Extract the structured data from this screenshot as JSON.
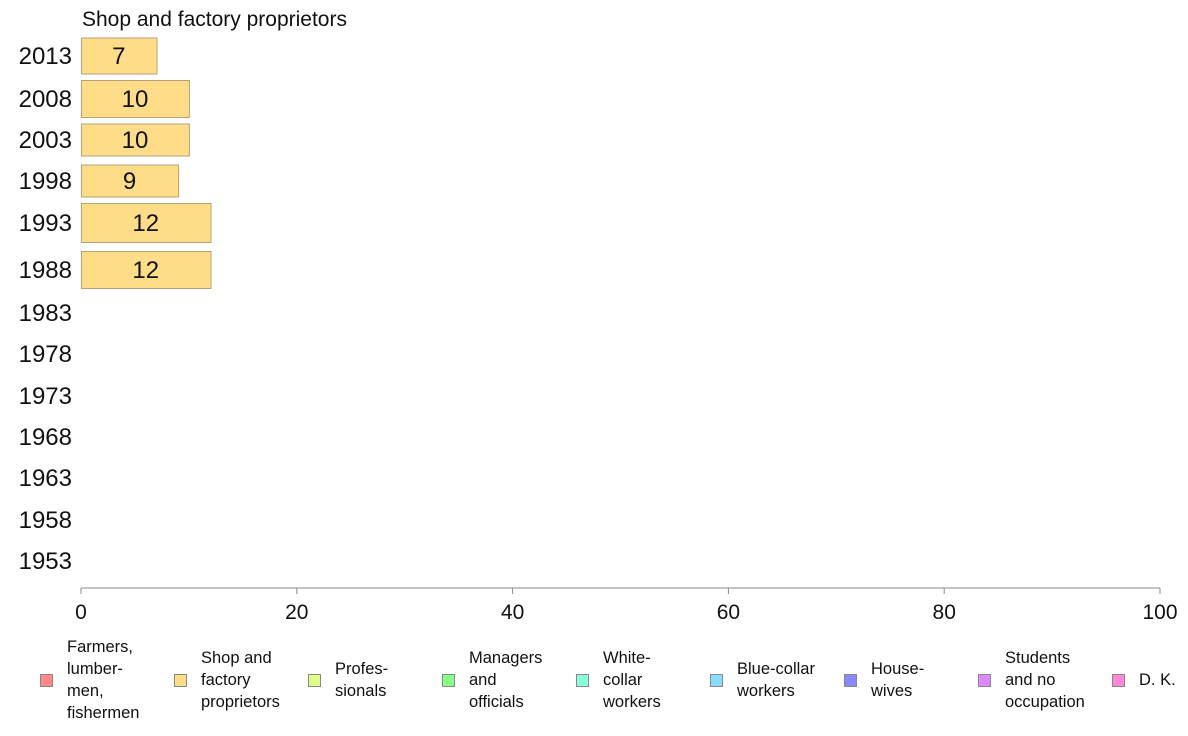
{
  "chart_data": {
    "type": "bar",
    "orientation": "horizontal",
    "title": "Shop and factory proprietors",
    "categories": [
      "2013",
      "2008",
      "2003",
      "1998",
      "1993",
      "1988",
      "1983",
      "1978",
      "1973",
      "1968",
      "1963",
      "1958",
      "1953"
    ],
    "series": [
      {
        "name": "Shop and factory proprietors",
        "color": "#ffdd88",
        "values": [
          7,
          10,
          10,
          9,
          12,
          12,
          null,
          null,
          null,
          null,
          null,
          null,
          null
        ]
      }
    ],
    "data_labels": [
      "7",
      "10",
      "10",
      "9",
      "12",
      "12",
      "",
      "",
      "",
      "",
      "",
      "",
      ""
    ],
    "xlim": [
      0,
      100
    ],
    "xticks": [
      0,
      20,
      40,
      60,
      80,
      100
    ],
    "xtick_labels": [
      "0",
      "20",
      "40",
      "60",
      "80",
      "100"
    ],
    "xlabel": "",
    "ylabel": "",
    "grid": false,
    "legend_position": "bottom",
    "legend": [
      {
        "label": "Farmers,\nlumber-\nmen,\nfishermen",
        "color": "#ff8888"
      },
      {
        "label": "Shop and\nfactory\nproprietors",
        "color": "#ffdd88"
      },
      {
        "label": "Profes-\nsionals",
        "color": "#ddff88"
      },
      {
        "label": "Managers\nand\nofficials",
        "color": "#88ff88"
      },
      {
        "label": "White-\ncollar\nworkers",
        "color": "#88ffdd"
      },
      {
        "label": "Blue-collar\nworkers",
        "color": "#88ddff"
      },
      {
        "label": "House-\nwives",
        "color": "#8888ff"
      },
      {
        "label": "Students\nand no\noccupation",
        "color": "#dd88ff"
      },
      {
        "label": "D. K.",
        "color": "#ff88dd"
      }
    ]
  }
}
